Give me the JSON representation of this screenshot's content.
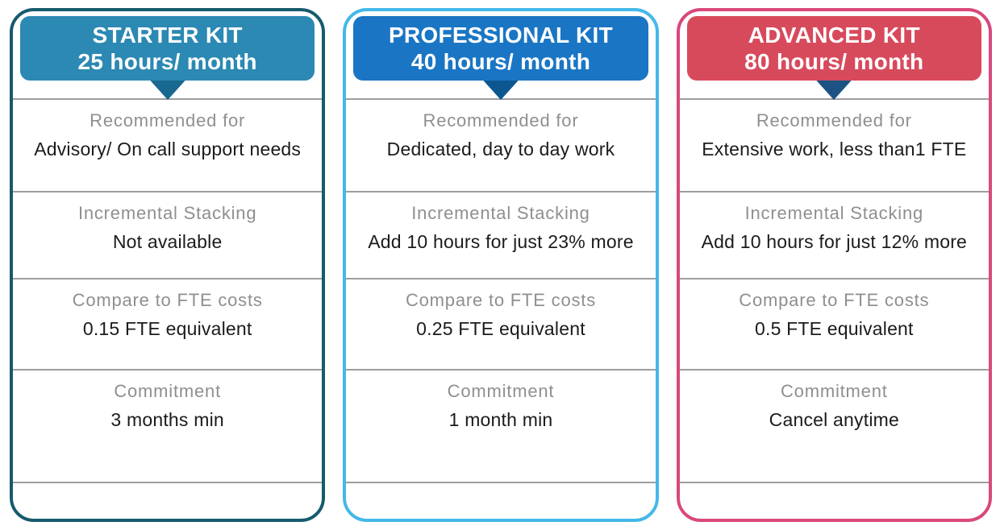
{
  "page": {
    "background": "#ffffff",
    "divider_color": "#9e9e9e",
    "label_color": "#8f8f8f",
    "value_color": "#1b1b1b"
  },
  "cards": [
    {
      "title": "STARTER KIT",
      "subtitle": "25 hours/ month",
      "colors": {
        "border": "#175a6e",
        "header_bg": "#2b89b3",
        "pointer": "#19688f"
      },
      "rows": [
        {
          "label": "Recommended for",
          "value": "Advisory/ On call support needs"
        },
        {
          "label": "Incremental Stacking",
          "value": "Not available"
        },
        {
          "label": "Compare to FTE costs",
          "value": "0.15 FTE equivalent"
        },
        {
          "label": "Commitment",
          "value": "3 months min"
        }
      ]
    },
    {
      "title": "PROFESSIONAL KIT",
      "subtitle": "40 hours/ month",
      "colors": {
        "border": "#44b8e9",
        "header_bg": "#1a76c4",
        "pointer": "#0d5790"
      },
      "rows": [
        {
          "label": "Recommended for",
          "value": "Dedicated, day to day work"
        },
        {
          "label": "Incremental Stacking",
          "value": "Add 10 hours for just 23% more"
        },
        {
          "label": "Compare to FTE costs",
          "value": "0.25 FTE equivalent"
        },
        {
          "label": "Commitment",
          "value": "1 month min"
        }
      ]
    },
    {
      "title": "ADVANCED KIT",
      "subtitle": "80 hours/ month",
      "colors": {
        "border": "#d9487c",
        "header_bg": "#d74a5c",
        "pointer": "#1c5384"
      },
      "rows": [
        {
          "label": "Recommended for",
          "value": "Extensive work, less than1 FTE"
        },
        {
          "label": "Incremental Stacking",
          "value": "Add 10 hours for just 12% more"
        },
        {
          "label": "Compare to FTE costs",
          "value": "0.5 FTE equivalent"
        },
        {
          "label": "Commitment",
          "value": "Cancel anytime"
        }
      ]
    }
  ]
}
